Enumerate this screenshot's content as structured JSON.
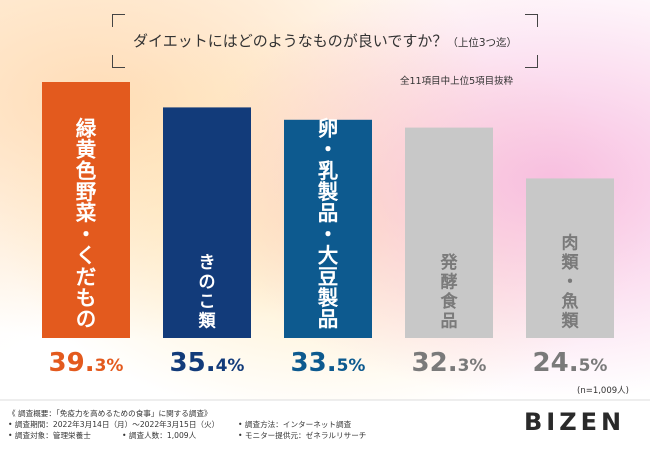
{
  "title": "ダイエットにはどのようなものが良いですか？",
  "title_note": "（上位3つ迄）",
  "subtitle": "全11項目中上位5項目抜粋",
  "sample_note": "(n=1,009人)",
  "footer": {
    "heading": "《 調査概要：「免疫力を高めるための食事」に関する調査》",
    "period": "• 調査期間：2022年3月14日（月）〜2022年3月15日（火）",
    "method": "• 調査方法：インターネット調査",
    "target": "• 調査対象：管理栄養士",
    "count": "• 調査人数：1,009人",
    "provider": "• モニター提供元：ゼネラルリサーチ"
  },
  "brand": "BIZEN",
  "chart_data": {
    "type": "bar",
    "categories": [
      "緑黄色野菜・くだもの",
      "きのこ類",
      "卵・乳製品・大豆製品",
      "発酵食品",
      "肉類・魚類"
    ],
    "values": [
      39.3,
      35.4,
      33.5,
      32.3,
      24.5
    ],
    "value_labels": [
      [
        "39.",
        "3%"
      ],
      [
        "35.",
        "4%"
      ],
      [
        "33.",
        "5%"
      ],
      [
        "32.",
        "3%"
      ],
      [
        "24.",
        "5%"
      ]
    ],
    "unit": "%",
    "ylim": [
      0,
      39.3
    ],
    "colors": [
      "#E35A1E",
      "#123B7A",
      "#0D5A8F",
      "#C8C8C8",
      "#C8C8C8"
    ],
    "label_colors": [
      "#E35A1E",
      "#123B7A",
      "#0D5A8F",
      "#7A7A7A",
      "#7A7A7A"
    ],
    "bar_text_colors": [
      "#FFFFFF",
      "#FFFFFF",
      "#FFFFFF",
      "#7A7A7A",
      "#7A7A7A"
    ]
  }
}
